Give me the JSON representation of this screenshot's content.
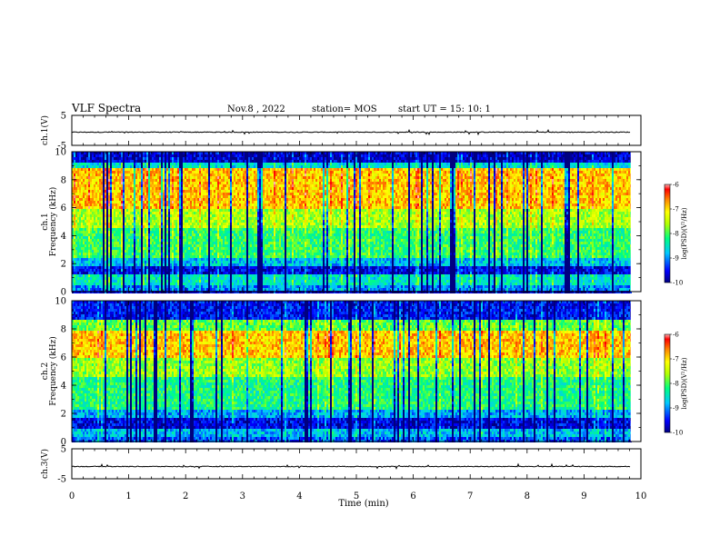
{
  "header": {
    "title": "VLF Spectra",
    "date": "Nov.8 , 2022",
    "station": "station= MOS",
    "start": "start UT = 15: 10: 1"
  },
  "chart_data": [
    {
      "type": "line",
      "name": "ch1-waveform",
      "ylabel": "ch.1(V)",
      "ylim": [
        -5,
        5
      ],
      "y_ticks": [
        "5",
        "-5"
      ],
      "xlim": [
        0,
        10
      ],
      "level": -0.6
    },
    {
      "type": "heatmap",
      "name": "ch1-spectrogram",
      "ylabel_line1": "ch.1",
      "ylabel_line2": "Frequency (kHz)",
      "ylim": [
        0,
        10
      ],
      "y_ticks": [
        "0",
        "2",
        "4",
        "6",
        "8",
        "10"
      ],
      "xlim": [
        0,
        10
      ],
      "data_end_min": 9.82,
      "colorbar": {
        "label": "log(PSD)(V²/Hz)",
        "range": [
          -10,
          -6
        ],
        "ticks": [
          "-6",
          "-7",
          "-8",
          "-9",
          "-10"
        ]
      },
      "bands": [
        {
          "from": 0.0,
          "to": 0.5,
          "level": -9.0
        },
        {
          "from": 0.5,
          "to": 1.3,
          "level": -8.5
        },
        {
          "from": 1.3,
          "to": 1.8,
          "level": -9.6
        },
        {
          "from": 1.8,
          "to": 2.4,
          "level": -8.8
        },
        {
          "from": 2.4,
          "to": 4.5,
          "level": -8.1
        },
        {
          "from": 4.5,
          "to": 6.0,
          "level": -7.6
        },
        {
          "from": 6.0,
          "to": 8.8,
          "level": -6.9
        },
        {
          "from": 8.8,
          "to": 9.3,
          "level": -8.6
        },
        {
          "from": 9.3,
          "to": 10.0,
          "level": -9.7
        }
      ]
    },
    {
      "type": "heatmap",
      "name": "ch2-spectrogram",
      "ylabel_line1": "ch.2",
      "ylabel_line2": "Frequency (kHz)",
      "ylim": [
        0,
        10
      ],
      "y_ticks": [
        "0",
        "2",
        "4",
        "6",
        "8",
        "10"
      ],
      "xlim": [
        0,
        10
      ],
      "data_end_min": 9.82,
      "colorbar": {
        "label": "log(PSD)(V²/Hz)",
        "range": [
          -10,
          -6
        ],
        "ticks": [
          "-6",
          "-7",
          "-8",
          "-9",
          "-10"
        ]
      },
      "bands": [
        {
          "from": 0.0,
          "to": 0.4,
          "level": -9.2
        },
        {
          "from": 0.4,
          "to": 1.0,
          "level": -8.8
        },
        {
          "from": 1.0,
          "to": 1.7,
          "level": -9.6
        },
        {
          "from": 1.7,
          "to": 2.3,
          "level": -8.9
        },
        {
          "from": 2.3,
          "to": 4.5,
          "level": -8.2
        },
        {
          "from": 4.5,
          "to": 6.0,
          "level": -7.7
        },
        {
          "from": 6.0,
          "to": 7.8,
          "level": -6.9
        },
        {
          "from": 7.8,
          "to": 8.6,
          "level": -7.9
        },
        {
          "from": 8.6,
          "to": 10.0,
          "level": -9.5
        }
      ]
    },
    {
      "type": "line",
      "name": "ch3-waveform",
      "ylabel": "ch.3(V)",
      "ylim": [
        -5,
        5
      ],
      "y_ticks": [
        "5",
        "-5"
      ],
      "xlim": [
        0,
        10
      ],
      "level": -0.9
    }
  ],
  "x_axis": {
    "label": "Time (min)",
    "ticks": [
      "0",
      "1",
      "2",
      "3",
      "4",
      "5",
      "6",
      "7",
      "8",
      "9",
      "10"
    ]
  }
}
